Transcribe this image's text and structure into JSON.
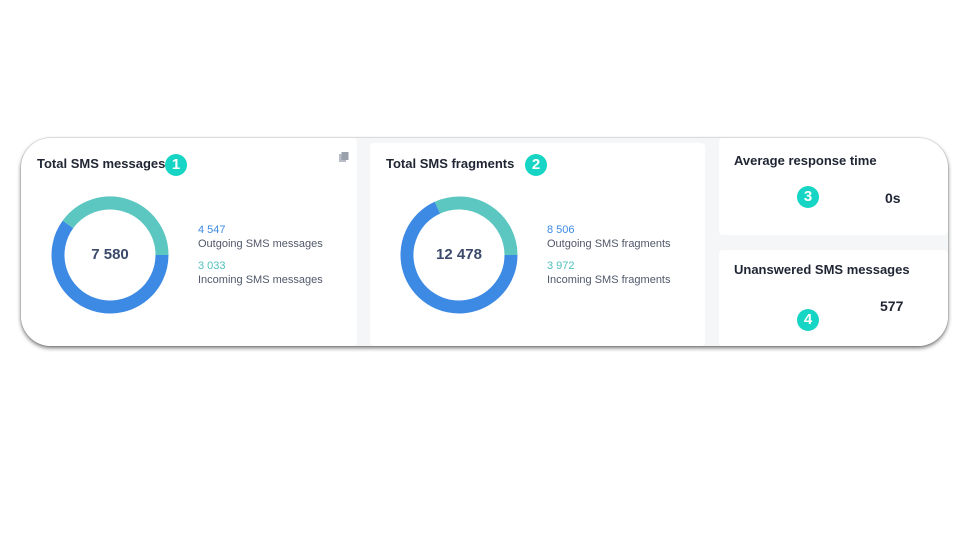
{
  "cards": {
    "total_messages": {
      "title": "Total SMS messages",
      "badge": "1",
      "total": "7 580",
      "outgoing_value": "4 547",
      "outgoing_label": "Outgoing SMS messages",
      "incoming_value": "3 033",
      "incoming_label": "Incoming SMS messages",
      "outgoing_fraction": 0.5999,
      "icon": "copy-icon"
    },
    "total_fragments": {
      "title": "Total SMS fragments",
      "badge": "2",
      "total": "12 478",
      "outgoing_value": "8 506",
      "outgoing_label": "Outgoing SMS fragments",
      "incoming_value": "3 972",
      "incoming_label": "Incoming SMS fragments",
      "outgoing_fraction": 0.6817
    },
    "avg_response": {
      "title": "Average response time",
      "badge": "3",
      "value": "0s"
    },
    "unanswered": {
      "title": "Unanswered SMS messages",
      "badge": "4",
      "value": "577"
    }
  },
  "colors": {
    "outgoing": "#3d8ae4",
    "incoming": "#5cc6c0",
    "badge": "#17d5c4"
  }
}
